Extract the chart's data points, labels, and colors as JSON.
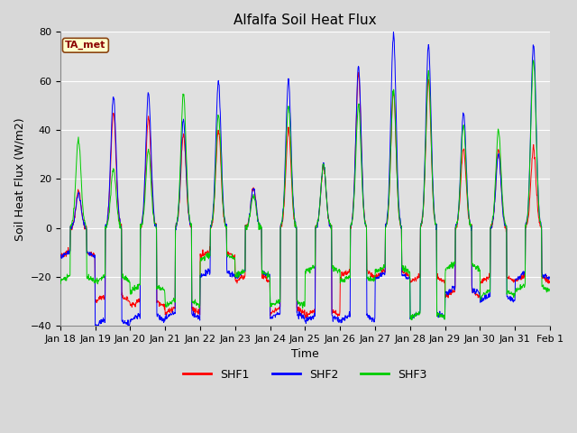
{
  "title": "Alfalfa Soil Heat Flux",
  "ylabel": "Soil Heat Flux (W/m2)",
  "xlabel": "Time",
  "ylim": [
    -40,
    80
  ],
  "annotation_text": "TA_met",
  "legend_labels": [
    "SHF1",
    "SHF2",
    "SHF3"
  ],
  "legend_colors": [
    "#ff0000",
    "#0000ff",
    "#00cc00"
  ],
  "background_color": "#d8d8d8",
  "axes_bg_color": "#e0e0e0",
  "grid_color": "#ffffff",
  "title_fontsize": 11,
  "label_fontsize": 9,
  "tick_fontsize": 8,
  "tick_labels": [
    "Jan 18",
    "Jan 19",
    "Jan 20",
    "Jan 21",
    "Jan 22",
    "Jan 23",
    "Jan 24",
    "Jan 25",
    "Jan 26",
    "Jan 27",
    "Jan 28",
    "Jan 29",
    "Jan 30",
    "Jan 31",
    "Feb 1"
  ],
  "yticks": [
    -40,
    -20,
    0,
    20,
    40,
    60,
    80
  ],
  "n_days": 14,
  "n_per_day": 96
}
